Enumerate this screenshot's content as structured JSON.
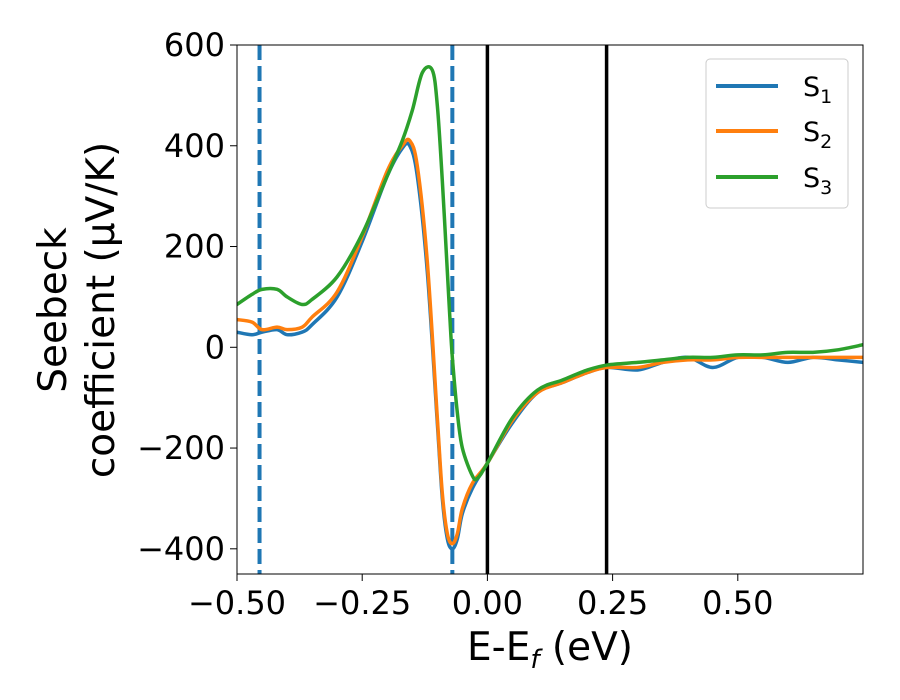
{
  "chart_data": {
    "type": "line",
    "title": "",
    "xlabel": "E-E",
    "xlabel_sub": "f",
    "xlabel_unit": " (eV)",
    "ylabel_line1": "Seebeck",
    "ylabel_line2": "coefficient  (μV/K)",
    "xlim": [
      -0.5,
      0.75
    ],
    "ylim": [
      -450,
      600
    ],
    "xticks": [
      -0.5,
      -0.25,
      0.0,
      0.25,
      0.5
    ],
    "xtick_labels": [
      "−0.50",
      "−0.25",
      "0.00",
      "0.25",
      "0.50"
    ],
    "yticks": [
      -400,
      -200,
      0,
      200,
      400,
      600
    ],
    "ytick_labels": [
      "−400",
      "−200",
      "0",
      "200",
      "400",
      "600"
    ],
    "grid": false,
    "legend_position": "top-right",
    "vlines_dashed": {
      "x": [
        -0.455,
        -0.07
      ],
      "color": "#1f77b4"
    },
    "vlines_solid": {
      "x": [
        0.0,
        0.238
      ],
      "color": "#000000"
    },
    "series": [
      {
        "name": "S",
        "sub": "1",
        "color": "#1f77b4",
        "x": [
          -0.5,
          -0.47,
          -0.45,
          -0.42,
          -0.4,
          -0.37,
          -0.35,
          -0.3,
          -0.25,
          -0.2,
          -0.17,
          -0.155,
          -0.14,
          -0.12,
          -0.1,
          -0.09,
          -0.08,
          -0.07,
          -0.06,
          -0.05,
          -0.03,
          0.0,
          0.05,
          0.1,
          0.15,
          0.2,
          0.24,
          0.3,
          0.35,
          0.4,
          0.45,
          0.5,
          0.55,
          0.6,
          0.65,
          0.7,
          0.75
        ],
        "y": [
          30,
          25,
          30,
          35,
          25,
          30,
          45,
          100,
          210,
          340,
          395,
          400,
          340,
          150,
          -150,
          -300,
          -380,
          -400,
          -380,
          -330,
          -280,
          -230,
          -150,
          -90,
          -70,
          -50,
          -40,
          -45,
          -30,
          -20,
          -40,
          -20,
          -20,
          -30,
          -20,
          -25,
          -30
        ]
      },
      {
        "name": "S",
        "sub": "2",
        "color": "#ff7f0e",
        "x": [
          -0.5,
          -0.47,
          -0.45,
          -0.42,
          -0.4,
          -0.37,
          -0.35,
          -0.3,
          -0.25,
          -0.2,
          -0.17,
          -0.155,
          -0.14,
          -0.12,
          -0.1,
          -0.09,
          -0.08,
          -0.07,
          -0.06,
          -0.05,
          -0.03,
          0.0,
          0.05,
          0.1,
          0.15,
          0.2,
          0.24,
          0.3,
          0.35,
          0.4,
          0.45,
          0.5,
          0.55,
          0.6,
          0.65,
          0.7,
          0.75
        ],
        "y": [
          55,
          50,
          35,
          40,
          35,
          40,
          60,
          110,
          220,
          350,
          400,
          410,
          360,
          170,
          -140,
          -290,
          -370,
          -390,
          -370,
          -320,
          -270,
          -230,
          -145,
          -90,
          -70,
          -50,
          -40,
          -40,
          -30,
          -25,
          -25,
          -20,
          -20,
          -20,
          -20,
          -20,
          -20
        ]
      },
      {
        "name": "S",
        "sub": "3",
        "color": "#2ca02c",
        "x": [
          -0.5,
          -0.47,
          -0.45,
          -0.42,
          -0.4,
          -0.37,
          -0.35,
          -0.3,
          -0.25,
          -0.2,
          -0.17,
          -0.15,
          -0.13,
          -0.11,
          -0.1,
          -0.09,
          -0.08,
          -0.075,
          -0.07,
          -0.06,
          -0.05,
          -0.03,
          -0.02,
          0.0,
          0.05,
          0.1,
          0.15,
          0.2,
          0.24,
          0.3,
          0.35,
          0.4,
          0.45,
          0.5,
          0.55,
          0.6,
          0.65,
          0.7,
          0.75
        ],
        "y": [
          85,
          105,
          115,
          115,
          100,
          85,
          95,
          140,
          225,
          340,
          410,
          470,
          545,
          550,
          480,
          330,
          150,
          60,
          -20,
          -130,
          -200,
          -255,
          -260,
          -230,
          -140,
          -85,
          -65,
          -45,
          -35,
          -30,
          -25,
          -20,
          -20,
          -15,
          -15,
          -10,
          -10,
          -5,
          5
        ]
      }
    ]
  }
}
